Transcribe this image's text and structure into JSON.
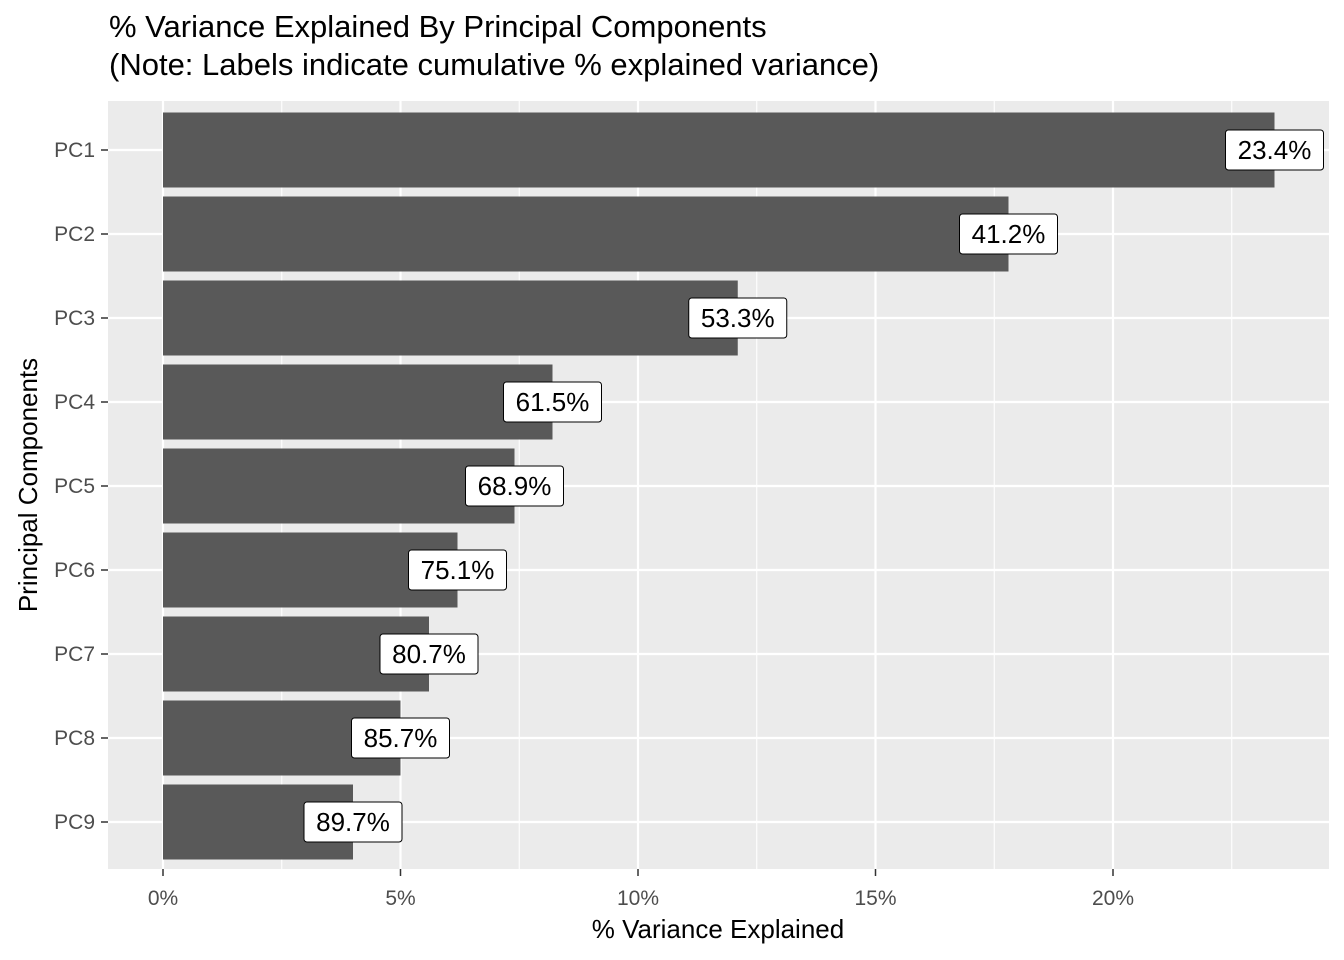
{
  "chart_data": {
    "type": "bar",
    "orientation": "horizontal",
    "title": "% Variance Explained By Principal Components",
    "subtitle": "(Note: Labels indicate cumulative % explained variance)",
    "xlabel": "% Variance Explained",
    "ylabel": "Principal Components",
    "categories": [
      "PC1",
      "PC2",
      "PC3",
      "PC4",
      "PC5",
      "PC6",
      "PC7",
      "PC8",
      "PC9"
    ],
    "values": [
      23.4,
      17.8,
      12.1,
      8.2,
      7.4,
      6.2,
      5.6,
      5.0,
      4.0
    ],
    "bar_labels": [
      "23.4%",
      "41.2%",
      "53.3%",
      "61.5%",
      "68.9%",
      "75.1%",
      "80.7%",
      "85.7%",
      "89.7%"
    ],
    "xlim": [
      -1.15,
      24.4
    ],
    "x_ticks": [
      0,
      5,
      10,
      15,
      20
    ],
    "x_tick_labels": [
      "0%",
      "5%",
      "10%",
      "15%",
      "20%"
    ],
    "grid": true,
    "legend": "none",
    "colors": {
      "bar": "#595959",
      "panel": "#ebebeb",
      "grid_major": "#ffffff",
      "label_bg": "#ffffff",
      "label_border": "#000000"
    }
  }
}
